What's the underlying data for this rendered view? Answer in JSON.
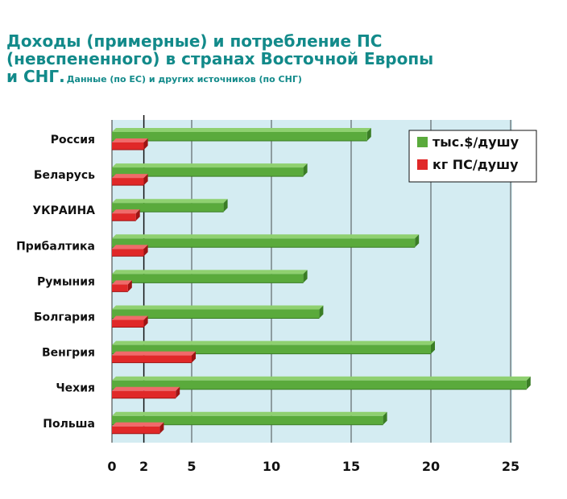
{
  "title": {
    "line1": "Доходы (примерные) и потребление ПС",
    "line2": "(невспененного) в странах Восточной Европы",
    "line3": "и СНГ.",
    "subtitle": "Данные (по ЕС) и других источников (по СНГ)"
  },
  "colors": {
    "income": "#5aaa3c",
    "consumption": "#e02828",
    "plot_bg": "#d4ecf2",
    "title": "#128a8a"
  },
  "chart_data": {
    "type": "bar",
    "orientation": "horizontal",
    "categories": [
      "Россия",
      "Беларусь",
      "УКРАИНА",
      "Прибалтика",
      "Румыния",
      "Болгария",
      "Венгрия",
      "Чехия",
      "Польша"
    ],
    "series": [
      {
        "name": "тыс.$/душу",
        "color": "#5aaa3c",
        "values": [
          16,
          12,
          7,
          19,
          12,
          13,
          20,
          26,
          17
        ]
      },
      {
        "name": "кг ПС/душу",
        "color": "#e02828",
        "values": [
          2,
          2,
          1.5,
          2,
          1,
          2,
          5,
          4,
          3
        ]
      }
    ],
    "x_ticks": [
      "0",
      "2",
      "5",
      "10",
      "15",
      "20",
      "25"
    ],
    "x_tick_values": [
      0,
      2,
      5,
      10,
      15,
      20,
      25
    ],
    "xlim": [
      0,
      25
    ],
    "grid": true,
    "legend_position": "top-right"
  }
}
